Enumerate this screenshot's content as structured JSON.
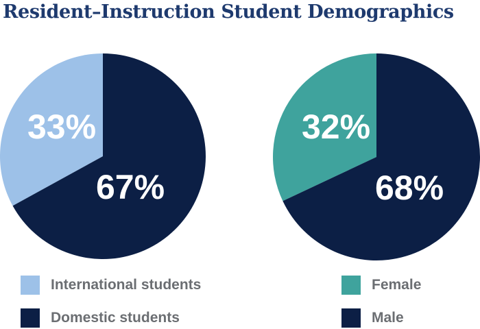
{
  "title": "Resident–Instruction Student Demographics",
  "chart_data": [
    {
      "type": "pie",
      "slices": [
        {
          "label": "International students",
          "value": 33,
          "display": "33%",
          "color": "#9dc1e8"
        },
        {
          "label": "Domestic students",
          "value": 67,
          "display": "67%",
          "color": "#0c1f45"
        }
      ]
    },
    {
      "type": "pie",
      "slices": [
        {
          "label": "Female",
          "value": 32,
          "display": "32%",
          "color": "#3fa39d"
        },
        {
          "label": "Male",
          "value": 68,
          "display": "68%",
          "color": "#0c1f45"
        }
      ]
    }
  ]
}
